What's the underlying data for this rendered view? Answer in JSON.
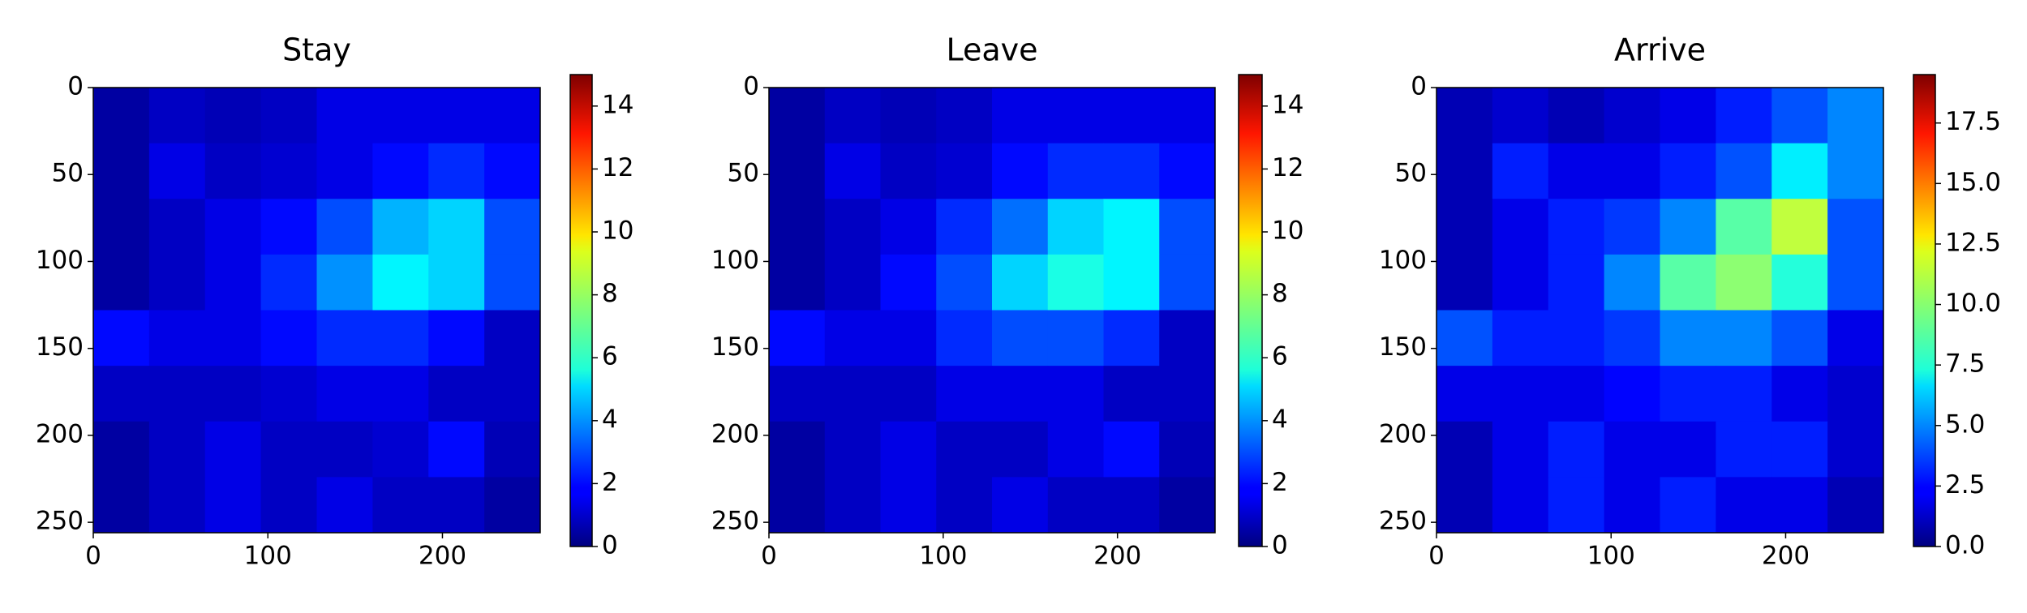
{
  "chart_data": [
    {
      "type": "heatmap",
      "title": "Stay",
      "colormap": "jet",
      "xlim": [
        0,
        256
      ],
      "ylim": [
        256,
        0
      ],
      "xticks": [
        0,
        100,
        200
      ],
      "yticks": [
        0,
        50,
        100,
        150,
        200,
        250
      ],
      "clim": [
        0,
        15
      ],
      "cticks": [
        0,
        2,
        4,
        6,
        8,
        10,
        12,
        14
      ],
      "values": [
        [
          0.5,
          1,
          0.8,
          1,
          1.5,
          1.5,
          1.5,
          1.5
        ],
        [
          0.5,
          1.5,
          1,
          1.2,
          1.5,
          2,
          2.5,
          2
        ],
        [
          0.5,
          1,
          1.5,
          2,
          3,
          4.5,
          5,
          3
        ],
        [
          0.5,
          1,
          1.5,
          2.5,
          4,
          5.5,
          5,
          3
        ],
        [
          2,
          1.5,
          1.5,
          2,
          2.5,
          2.5,
          2,
          1
        ],
        [
          1,
          1,
          1,
          1.2,
          1.5,
          1.5,
          1,
          1
        ],
        [
          0.5,
          1,
          1.5,
          1,
          1,
          1.2,
          2,
          0.8
        ],
        [
          0.5,
          1,
          1.5,
          1,
          1.5,
          1,
          1,
          0.5
        ]
      ]
    },
    {
      "type": "heatmap",
      "title": "Leave",
      "colormap": "jet",
      "xlim": [
        0,
        256
      ],
      "ylim": [
        256,
        0
      ],
      "xticks": [
        0,
        100,
        200
      ],
      "yticks": [
        0,
        50,
        100,
        150,
        200,
        250
      ],
      "clim": [
        0,
        15
      ],
      "cticks": [
        0,
        2,
        4,
        6,
        8,
        10,
        12,
        14
      ],
      "values": [
        [
          0.5,
          1,
          0.8,
          1,
          1.5,
          1.5,
          1.5,
          1.5
        ],
        [
          0.5,
          1.5,
          1,
          1.2,
          2,
          2.5,
          2.5,
          2
        ],
        [
          0.5,
          1,
          1.5,
          2.5,
          3.5,
          5,
          5.5,
          3
        ],
        [
          0.5,
          1,
          2,
          3,
          5,
          6,
          5.5,
          3
        ],
        [
          2,
          1.5,
          1.5,
          2.5,
          3,
          3,
          2.5,
          1
        ],
        [
          1,
          1,
          1,
          1.5,
          1.5,
          1.5,
          1,
          1
        ],
        [
          0.5,
          1,
          1.5,
          1,
          1,
          1.5,
          2,
          0.8
        ],
        [
          0.5,
          1,
          1.5,
          1,
          1.5,
          1,
          1,
          0.5
        ]
      ]
    },
    {
      "type": "heatmap",
      "title": "Arrive",
      "colormap": "jet",
      "xlim": [
        0,
        256
      ],
      "ylim": [
        256,
        0
      ],
      "xticks": [
        0,
        100,
        200
      ],
      "yticks": [
        0,
        50,
        100,
        150,
        200,
        250
      ],
      "clim": [
        0,
        19.5
      ],
      "cticks": [
        {
          "value": 0,
          "label": "0.0"
        },
        2.5,
        {
          "value": 5,
          "label": "5.0"
        },
        7.5,
        {
          "value": 10,
          "label": "10.0"
        },
        12.5,
        {
          "value": 15,
          "label": "15.0"
        },
        17.5
      ],
      "values": [
        [
          1,
          1.5,
          1,
          1.5,
          2,
          3,
          4,
          5
        ],
        [
          1,
          3,
          2,
          2,
          3,
          4,
          7,
          5
        ],
        [
          1,
          2,
          3,
          3.5,
          5,
          9,
          11,
          4
        ],
        [
          1,
          2,
          3,
          5,
          9,
          10,
          8,
          4
        ],
        [
          4,
          3,
          3,
          3.5,
          5,
          5,
          4,
          2
        ],
        [
          2,
          2,
          2,
          2.5,
          3,
          3,
          2,
          1.5
        ],
        [
          1,
          2,
          3,
          2,
          2,
          3,
          3,
          1.5
        ],
        [
          1,
          2,
          3,
          2,
          3,
          2,
          2,
          1
        ]
      ]
    }
  ]
}
